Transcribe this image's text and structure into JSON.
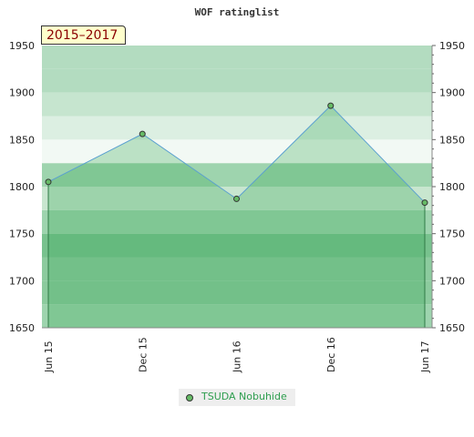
{
  "chart_data": {
    "type": "area",
    "title": "WOF ratinglist",
    "period_label": "2015–2017",
    "categories": [
      "Jun 15",
      "Dec 15",
      "Jun 16",
      "Dec 16",
      "Jun 17"
    ],
    "series": [
      {
        "name": "TSUDA Nobuhide",
        "values": [
          1805,
          1856,
          1787,
          1886,
          1783
        ]
      }
    ],
    "ylim": [
      1650,
      1950
    ],
    "yticks": [
      1650,
      1700,
      1750,
      1800,
      1850,
      1900,
      1950
    ],
    "legend_position": "bottom",
    "colors": {
      "line": "#5aa0d0",
      "area": "#3daa5a",
      "marker": "#66bb66",
      "marker_stroke": "#333333",
      "legend_text": "#2e9e4f",
      "period_text": "#8b0000",
      "period_bg": "#ffffcc",
      "band_colors": [
        "#9ed4ae",
        "#8ccb9e",
        "#8ccb9e",
        "#78c28e",
        "#9ed4ae",
        "#c8e6cf",
        "#9ed4ae",
        "#f2f9f4",
        "#dcefe2",
        "#c6e5cf",
        "#b3dcc0",
        "#b3dcc0"
      ]
    }
  }
}
